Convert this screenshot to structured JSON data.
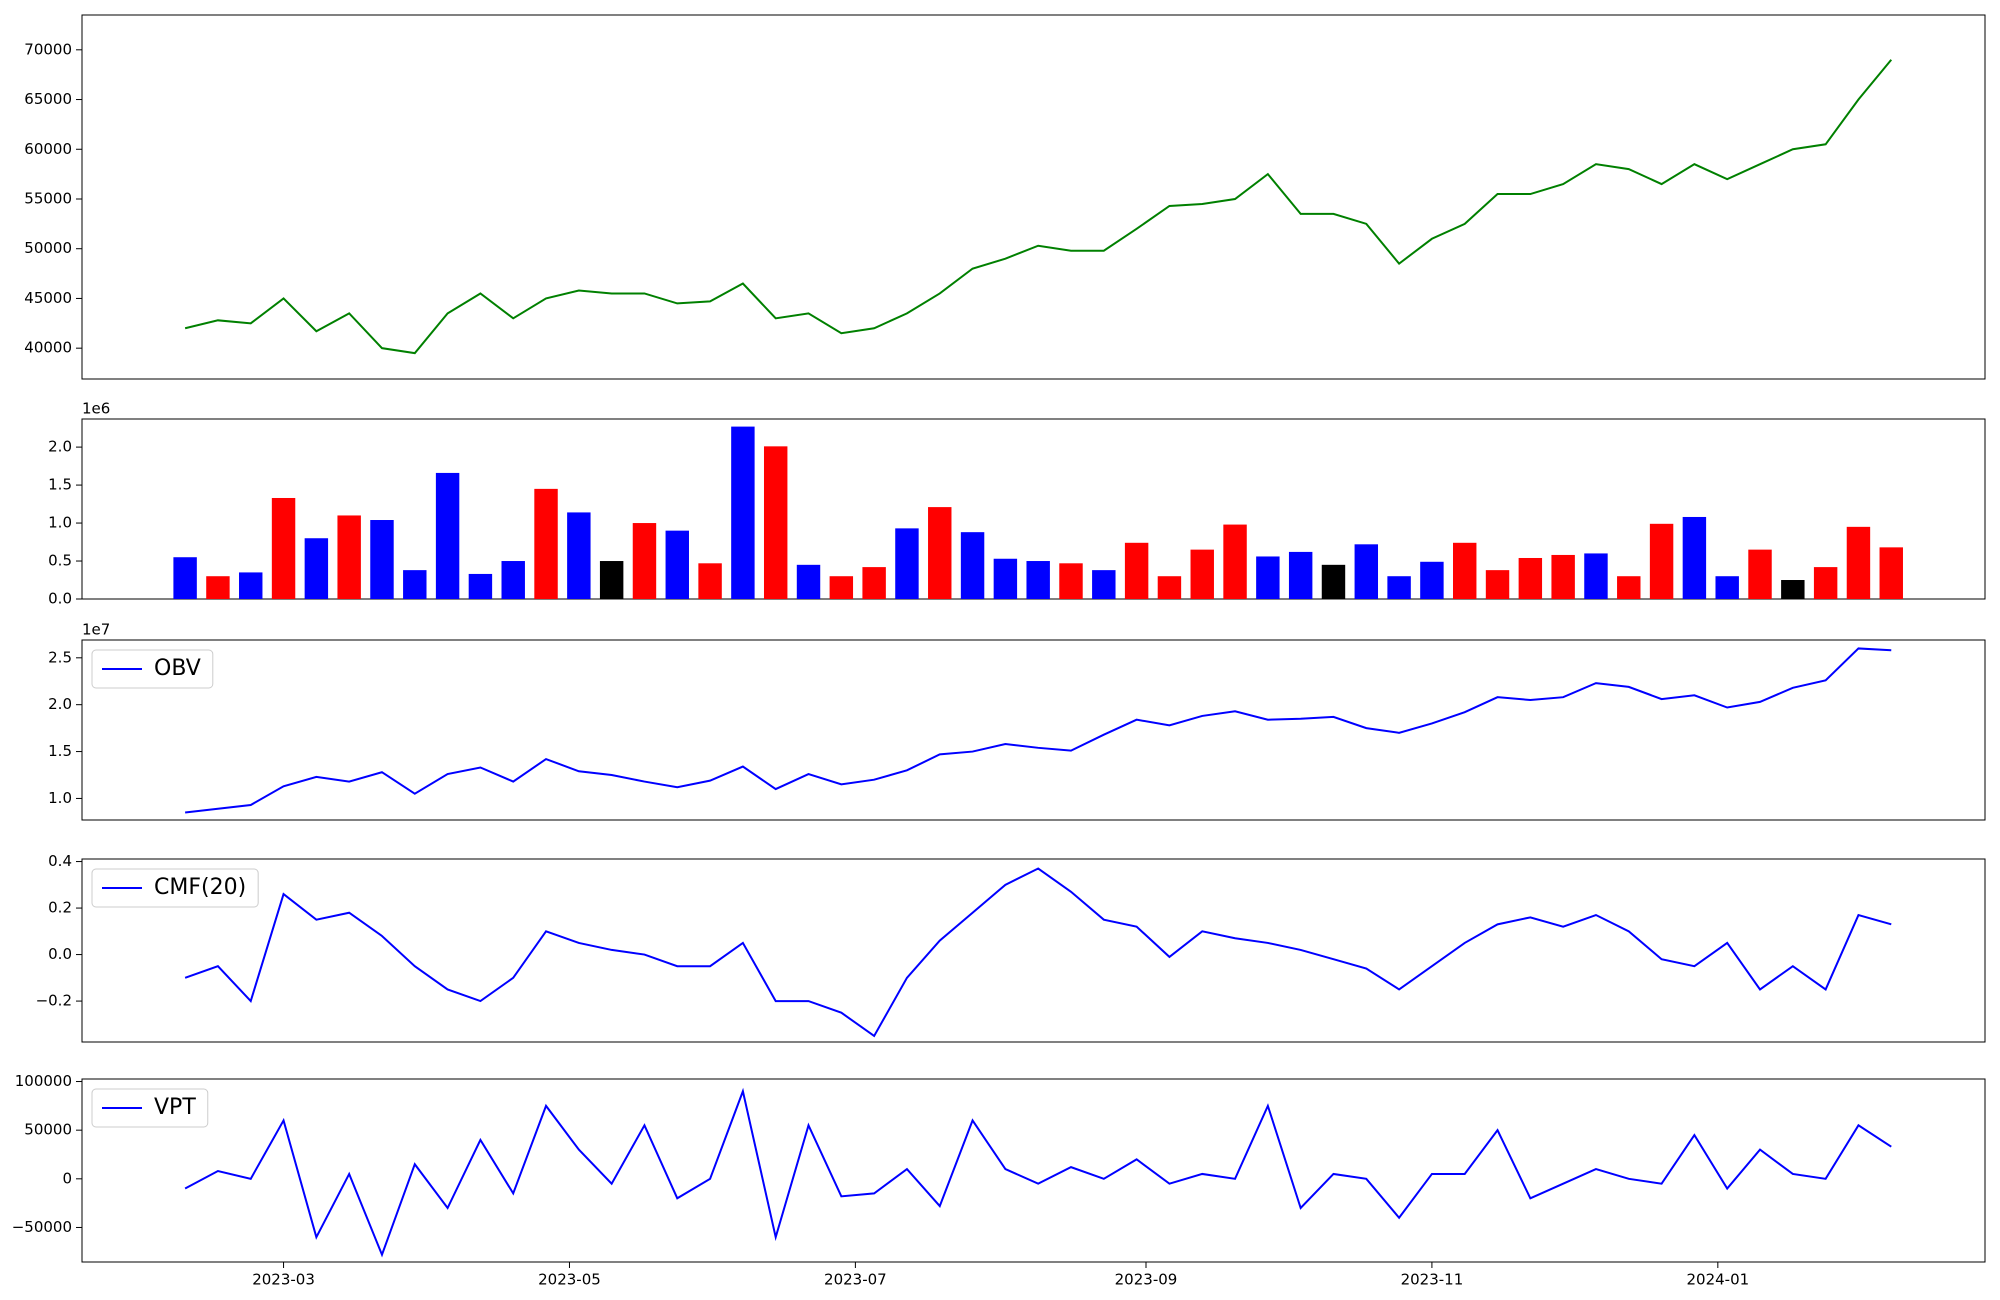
{
  "chart_data": [
    {
      "type": "line",
      "x": [
        "2023-02-08",
        "2023-02-15",
        "2023-02-22",
        "2023-03-01",
        "2023-03-08",
        "2023-03-15",
        "2023-03-22",
        "2023-03-29",
        "2023-04-05",
        "2023-04-12",
        "2023-04-19",
        "2023-04-26",
        "2023-05-03",
        "2023-05-10",
        "2023-05-17",
        "2023-05-24",
        "2023-05-31",
        "2023-06-07",
        "2023-06-14",
        "2023-06-21",
        "2023-06-28",
        "2023-07-05",
        "2023-07-12",
        "2023-07-19",
        "2023-07-26",
        "2023-08-02",
        "2023-08-09",
        "2023-08-16",
        "2023-08-23",
        "2023-08-30",
        "2023-09-06",
        "2023-09-13",
        "2023-09-20",
        "2023-09-27",
        "2023-10-04",
        "2023-10-11",
        "2023-10-18",
        "2023-10-25",
        "2023-11-01",
        "2023-11-08",
        "2023-11-15",
        "2023-11-22",
        "2023-11-29",
        "2023-12-06",
        "2023-12-13",
        "2023-12-20",
        "2023-12-27",
        "2024-01-03",
        "2024-01-10",
        "2024-01-17",
        "2024-01-24",
        "2024-01-31",
        "2024-02-07"
      ],
      "series": [
        {
          "color": "#008000",
          "values": [
            42000,
            42800,
            42500,
            45000,
            41700,
            43500,
            40000,
            39500,
            43500,
            45500,
            43000,
            45000,
            45800,
            45500,
            45500,
            44500,
            44700,
            46500,
            43000,
            43500,
            41500,
            42000,
            43500,
            45500,
            48000,
            49000,
            50300,
            49800,
            49800,
            52000,
            54300,
            54500,
            55000,
            57500,
            53500,
            53500,
            52500,
            48500,
            51000,
            52500,
            55500,
            55500,
            56500,
            58500,
            58000,
            56500,
            58500,
            57000,
            58500,
            60000,
            60500,
            65000,
            69000
          ]
        }
      ],
      "xlim": [
        "2023-01-17",
        "2024-02-27"
      ],
      "ylim": [
        36900,
        73500
      ],
      "yticks": [
        40000,
        45000,
        50000,
        55000,
        60000,
        65000,
        70000
      ]
    },
    {
      "type": "bar",
      "x": [
        "2023-02-08",
        "2023-02-15",
        "2023-02-22",
        "2023-03-01",
        "2023-03-08",
        "2023-03-15",
        "2023-03-22",
        "2023-03-29",
        "2023-04-05",
        "2023-04-12",
        "2023-04-19",
        "2023-04-26",
        "2023-05-03",
        "2023-05-10",
        "2023-05-17",
        "2023-05-24",
        "2023-05-31",
        "2023-06-07",
        "2023-06-14",
        "2023-06-21",
        "2023-06-28",
        "2023-07-05",
        "2023-07-12",
        "2023-07-19",
        "2023-07-26",
        "2023-08-02",
        "2023-08-09",
        "2023-08-16",
        "2023-08-23",
        "2023-08-30",
        "2023-09-06",
        "2023-09-13",
        "2023-09-20",
        "2023-09-27",
        "2023-10-04",
        "2023-10-11",
        "2023-10-18",
        "2023-10-25",
        "2023-11-01",
        "2023-11-08",
        "2023-11-15",
        "2023-11-22",
        "2023-11-29",
        "2023-12-06",
        "2023-12-13",
        "2023-12-20",
        "2023-12-27",
        "2024-01-03",
        "2024-01-10",
        "2024-01-17",
        "2024-01-24",
        "2024-01-31",
        "2024-02-07"
      ],
      "values": [
        550000,
        300000,
        350000,
        1330000,
        800000,
        1100000,
        1040000,
        380000,
        1660000,
        330000,
        500000,
        1450000,
        1140000,
        500000,
        1000000,
        900000,
        470000,
        2270000,
        2010000,
        450000,
        300000,
        420000,
        930000,
        1210000,
        880000,
        530000,
        500000,
        470000,
        380000,
        740000,
        300000,
        650000,
        980000,
        560000,
        620000,
        450000,
        720000,
        300000,
        490000,
        740000,
        380000,
        540000,
        580000,
        600000,
        300000,
        990000,
        1080000,
        300000,
        650000,
        250000,
        420000,
        950000,
        680000
      ],
      "colors": [
        "blue",
        "red",
        "blue",
        "red",
        "blue",
        "red",
        "blue",
        "blue",
        "blue",
        "blue",
        "blue",
        "red",
        "blue",
        "black",
        "red",
        "blue",
        "red",
        "blue",
        "red",
        "blue",
        "red",
        "red",
        "blue",
        "red",
        "blue",
        "blue",
        "blue",
        "red",
        "blue",
        "red",
        "red",
        "red",
        "red",
        "blue",
        "blue",
        "black",
        "blue",
        "blue",
        "blue",
        "red",
        "red",
        "red",
        "red",
        "blue",
        "red",
        "red",
        "blue",
        "blue",
        "red",
        "black",
        "red",
        "red",
        "red"
      ],
      "offset_label": "1e6",
      "xlim": [
        "2023-01-17",
        "2024-02-27"
      ],
      "ylim": [
        0,
        2370000
      ],
      "yticks": [
        {
          "value": 0,
          "label": "0.0"
        },
        {
          "value": 500000,
          "label": "0.5"
        },
        {
          "value": 1000000,
          "label": "1.0"
        },
        {
          "value": 1500000,
          "label": "1.5"
        },
        {
          "value": 2000000,
          "label": "2.0"
        }
      ]
    },
    {
      "type": "line",
      "x": [
        "2023-02-08",
        "2023-02-15",
        "2023-02-22",
        "2023-03-01",
        "2023-03-08",
        "2023-03-15",
        "2023-03-22",
        "2023-03-29",
        "2023-04-05",
        "2023-04-12",
        "2023-04-19",
        "2023-04-26",
        "2023-05-03",
        "2023-05-10",
        "2023-05-17",
        "2023-05-24",
        "2023-05-31",
        "2023-06-07",
        "2023-06-14",
        "2023-06-21",
        "2023-06-28",
        "2023-07-05",
        "2023-07-12",
        "2023-07-19",
        "2023-07-26",
        "2023-08-02",
        "2023-08-09",
        "2023-08-16",
        "2023-08-23",
        "2023-08-30",
        "2023-09-06",
        "2023-09-13",
        "2023-09-20",
        "2023-09-27",
        "2023-10-04",
        "2023-10-11",
        "2023-10-18",
        "2023-10-25",
        "2023-11-01",
        "2023-11-08",
        "2023-11-15",
        "2023-11-22",
        "2023-11-29",
        "2023-12-06",
        "2023-12-13",
        "2023-12-20",
        "2023-12-27",
        "2024-01-03",
        "2024-01-10",
        "2024-01-17",
        "2024-01-24",
        "2024-01-31",
        "2024-02-07"
      ],
      "series": [
        {
          "name": "OBV",
          "color": "#0000ff",
          "values": [
            8500000,
            8900000,
            9300000,
            11300000,
            12300000,
            11800000,
            12800000,
            10500000,
            12600000,
            13300000,
            11800000,
            14200000,
            12900000,
            12500000,
            11800000,
            11200000,
            11900000,
            13400000,
            11000000,
            12600000,
            11500000,
            12000000,
            13000000,
            14700000,
            15000000,
            15800000,
            15400000,
            15100000,
            16800000,
            18400000,
            17800000,
            18800000,
            19300000,
            18400000,
            18500000,
            18700000,
            17500000,
            17000000,
            18000000,
            19200000,
            20800000,
            20500000,
            20800000,
            22300000,
            21900000,
            20600000,
            21000000,
            19700000,
            20300000,
            21800000,
            22600000,
            26000000,
            25800000
          ]
        }
      ],
      "offset_label": "1e7",
      "legend": "upper left",
      "xlim": [
        "2023-01-17",
        "2024-02-27"
      ],
      "ylim": [
        7700000,
        26900000
      ],
      "yticks": [
        {
          "value": 10000000,
          "label": "1.0"
        },
        {
          "value": 15000000,
          "label": "1.5"
        },
        {
          "value": 20000000,
          "label": "2.0"
        },
        {
          "value": 25000000,
          "label": "2.5"
        }
      ]
    },
    {
      "type": "line",
      "x": [
        "2023-02-08",
        "2023-02-15",
        "2023-02-22",
        "2023-03-01",
        "2023-03-08",
        "2023-03-15",
        "2023-03-22",
        "2023-03-29",
        "2023-04-05",
        "2023-04-12",
        "2023-04-19",
        "2023-04-26",
        "2023-05-03",
        "2023-05-10",
        "2023-05-17",
        "2023-05-24",
        "2023-05-31",
        "2023-06-07",
        "2023-06-14",
        "2023-06-21",
        "2023-06-28",
        "2023-07-05",
        "2023-07-12",
        "2023-07-19",
        "2023-07-26",
        "2023-08-02",
        "2023-08-09",
        "2023-08-16",
        "2023-08-23",
        "2023-08-30",
        "2023-09-06",
        "2023-09-13",
        "2023-09-20",
        "2023-09-27",
        "2023-10-04",
        "2023-10-11",
        "2023-10-18",
        "2023-10-25",
        "2023-11-01",
        "2023-11-08",
        "2023-11-15",
        "2023-11-22",
        "2023-11-29",
        "2023-12-06",
        "2023-12-13",
        "2023-12-20",
        "2023-12-27",
        "2024-01-03",
        "2024-01-10",
        "2024-01-17",
        "2024-01-24",
        "2024-01-31",
        "2024-02-07"
      ],
      "series": [
        {
          "name": "CMF(20)",
          "color": "#0000ff",
          "values": [
            -0.1,
            -0.05,
            -0.2,
            0.26,
            0.15,
            0.18,
            0.08,
            -0.05,
            -0.15,
            -0.2,
            -0.1,
            0.1,
            0.05,
            0.02,
            0.0,
            -0.05,
            -0.05,
            0.05,
            -0.2,
            -0.2,
            -0.25,
            -0.35,
            -0.1,
            0.06,
            0.18,
            0.3,
            0.37,
            0.27,
            0.15,
            0.12,
            -0.01,
            0.1,
            0.07,
            0.05,
            0.02,
            -0.02,
            -0.06,
            -0.15,
            -0.05,
            0.05,
            0.13,
            0.16,
            0.12,
            0.17,
            0.1,
            -0.02,
            -0.05,
            0.05,
            -0.15,
            -0.05,
            -0.15,
            0.17,
            0.13
          ]
        }
      ],
      "legend": "upper left",
      "xlim": [
        "2023-01-17",
        "2024-02-27"
      ],
      "ylim": [
        -0.376,
        0.411
      ],
      "yticks": [
        {
          "value": -0.2,
          "label": "−0.2"
        },
        {
          "value": 0,
          "label": "0.0"
        },
        0.2,
        0.4
      ]
    },
    {
      "type": "line",
      "x": [
        "2023-02-08",
        "2023-02-15",
        "2023-02-22",
        "2023-03-01",
        "2023-03-08",
        "2023-03-15",
        "2023-03-22",
        "2023-03-29",
        "2023-04-05",
        "2023-04-12",
        "2023-04-19",
        "2023-04-26",
        "2023-05-03",
        "2023-05-10",
        "2023-05-17",
        "2023-05-24",
        "2023-05-31",
        "2023-06-07",
        "2023-06-14",
        "2023-06-21",
        "2023-06-28",
        "2023-07-05",
        "2023-07-12",
        "2023-07-19",
        "2023-07-26",
        "2023-08-02",
        "2023-08-09",
        "2023-08-16",
        "2023-08-23",
        "2023-08-30",
        "2023-09-06",
        "2023-09-13",
        "2023-09-20",
        "2023-09-27",
        "2023-10-04",
        "2023-10-11",
        "2023-10-18",
        "2023-10-25",
        "2023-11-01",
        "2023-11-08",
        "2023-11-15",
        "2023-11-22",
        "2023-11-29",
        "2023-12-06",
        "2023-12-13",
        "2023-12-20",
        "2023-12-27",
        "2024-01-03",
        "2024-01-10",
        "2024-01-17",
        "2024-01-24",
        "2024-01-31",
        "2024-02-07"
      ],
      "series": [
        {
          "name": "VPT",
          "color": "#0000ff",
          "values": [
            -10000,
            8000,
            0,
            60000,
            -60000,
            5000,
            -78000,
            15000,
            -30000,
            40000,
            -15000,
            75000,
            30000,
            -5000,
            55000,
            -20000,
            0,
            90000,
            -60000,
            55000,
            -18000,
            -15000,
            10000,
            -28000,
            60000,
            10000,
            -5000,
            12000,
            0,
            20000,
            -5000,
            5000,
            0,
            75000,
            -30000,
            5000,
            0,
            -40000,
            5000,
            5000,
            50000,
            -20000,
            -5000,
            10000,
            0,
            -5000,
            45000,
            -10000,
            30000,
            5000,
            0,
            55000,
            33000
          ]
        }
      ],
      "legend": "upper left",
      "xlim": [
        "2023-01-17",
        "2024-02-27"
      ],
      "ylim": [
        -85500,
        102600
      ],
      "yticks": [
        {
          "value": -50000,
          "label": "−50000"
        },
        0,
        50000,
        100000
      ],
      "xticks": [
        {
          "value": "2023-03-01",
          "label": "2023-03"
        },
        {
          "value": "2023-05-01",
          "label": "2023-05"
        },
        {
          "value": "2023-07-01",
          "label": "2023-07"
        },
        {
          "value": "2023-09-01",
          "label": "2023-09"
        },
        {
          "value": "2023-11-01",
          "label": "2023-11"
        },
        {
          "value": "2024-01-01",
          "label": "2024-01"
        }
      ]
    }
  ]
}
